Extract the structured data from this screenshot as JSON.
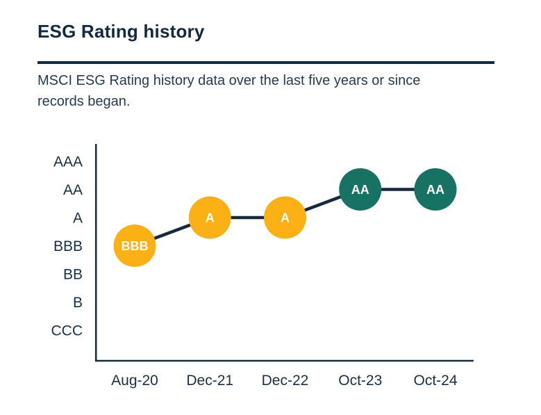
{
  "page": {
    "title": "ESG Rating history",
    "subtitle": "MSCI ESG Rating history data over the last five years or since records began."
  },
  "colors": {
    "heading_text": "#132940",
    "body_text": "#243B50",
    "axis_label_text": "#1B2F44",
    "axis_line": "#182C40",
    "trend_line": "#16293D",
    "divider": "#132A3C",
    "marker_label_text": "#FFFFFF",
    "rating_yellow": "#FBB116",
    "rating_teal": "#177264",
    "page_bg": "#FFFFFF"
  },
  "chart_data": {
    "type": "line",
    "title": "ESG Rating history",
    "xlabel": "",
    "ylabel": "",
    "grid": "off",
    "legend": "none",
    "y_levels_top_to_bottom": [
      "AAA",
      "AA",
      "A",
      "BBB",
      "BB",
      "B",
      "CCC"
    ],
    "x": [
      "Aug-20",
      "Dec-21",
      "Dec-22",
      "Oct-23",
      "Oct-24"
    ],
    "series": [
      {
        "name": "MSCI ESG Rating",
        "values": [
          "BBB",
          "A",
          "A",
          "AA",
          "AA"
        ],
        "point_colors": [
          "#FBB116",
          "#FBB116",
          "#FBB116",
          "#177264",
          "#177264"
        ]
      }
    ]
  }
}
